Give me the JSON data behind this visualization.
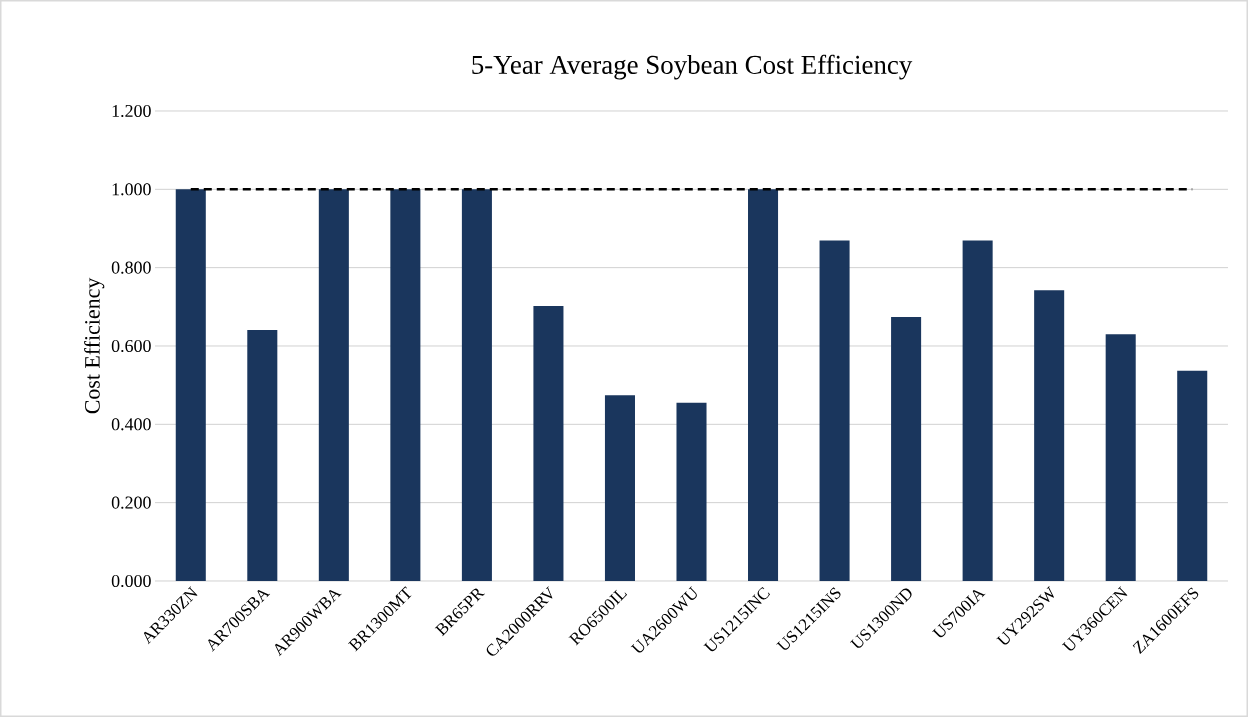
{
  "chart_data": {
    "type": "bar",
    "title": "5-Year Average Soybean Cost Efficiency",
    "ylabel": "Cost Efficiency",
    "categories": [
      "AR330ZN",
      "AR700SBA",
      "AR900WBA",
      "BR1300MT",
      "BR65PR",
      "CA2000RRV",
      "RO6500IL",
      "UA2600WU",
      "US1215INC",
      "US1215INS",
      "US1300ND",
      "US700IA",
      "UY292SW",
      "UY360CEN",
      "ZA1600EFS"
    ],
    "values": [
      1.0,
      0.641,
      1.0,
      1.0,
      1.0,
      0.702,
      0.474,
      0.455,
      1.0,
      0.869,
      0.674,
      0.869,
      0.742,
      0.63,
      0.537
    ],
    "color": "#1a365d",
    "ylim": [
      0,
      1.2
    ],
    "yticks": [
      {
        "value": 0,
        "label": "0.000"
      },
      {
        "value": 0.2,
        "label": "0.200"
      },
      {
        "value": 0.4,
        "label": "0.400"
      },
      {
        "value": 0.6,
        "label": "0.600"
      },
      {
        "value": 0.8,
        "label": "0.800"
      },
      {
        "value": 1.0,
        "label": "1.000"
      },
      {
        "value": 1.2,
        "label": "1.200"
      }
    ],
    "grid": "y",
    "ref_lines": [
      {
        "axis": "y",
        "value": 1.0,
        "color": "#000000",
        "line_style": "dashed"
      }
    ]
  }
}
